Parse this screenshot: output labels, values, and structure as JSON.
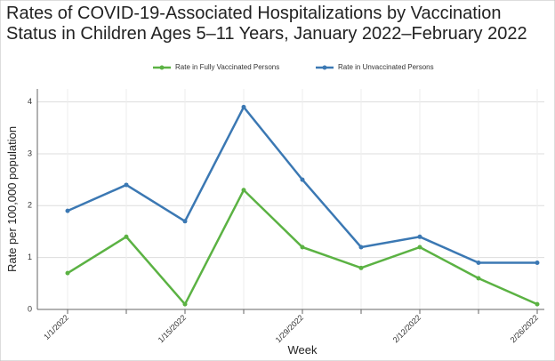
{
  "chart_data": {
    "type": "line",
    "title": "Rates of COVID-19-Associated Hospitalizations by Vaccination",
    "subtitle": "Status in Children Ages 5–11 Years, January 2022–February 2022",
    "x_label": "Week",
    "y_label": "Rate per 100,000 population",
    "categories": [
      "1/1/2022",
      null,
      "1/15/2022",
      null,
      "1/29/2022",
      null,
      "2/12/2022",
      null,
      "2/26/2022"
    ],
    "series": [
      {
        "name": "Rate in Fully Vaccinated Persons",
        "color": "#5bb243",
        "values": [
          0.7,
          1.4,
          0.1,
          2.3,
          1.2,
          0.8,
          1.2,
          0.6,
          0.1
        ]
      },
      {
        "name": "Rate in Unvaccinated Persons",
        "color": "#3b78b3",
        "values": [
          1.9,
          2.4,
          1.7,
          3.9,
          2.5,
          1.2,
          1.4,
          0.9,
          0.9
        ]
      }
    ],
    "ylim": [
      0,
      4.25
    ],
    "yticks": [
      0,
      1,
      2,
      3,
      4
    ],
    "grid": true
  }
}
